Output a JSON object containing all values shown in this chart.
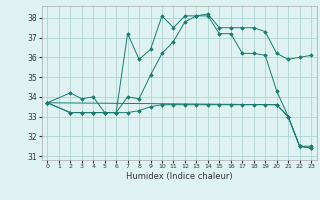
{
  "xlabel": "Humidex (Indice chaleur)",
  "bg_color": "#dff2f2",
  "grid_color": "#aed4d4",
  "line_color": "#1a7a6e",
  "xlim": [
    -0.5,
    23.5
  ],
  "ylim": [
    30.8,
    38.6
  ],
  "yticks": [
    31,
    32,
    33,
    34,
    35,
    36,
    37,
    38
  ],
  "xticks": [
    0,
    1,
    2,
    3,
    4,
    5,
    6,
    7,
    8,
    9,
    10,
    11,
    12,
    13,
    14,
    15,
    16,
    17,
    18,
    19,
    20,
    21,
    22,
    23
  ],
  "series": [
    {
      "x": [
        0,
        2,
        3,
        4,
        5,
        6,
        7,
        8,
        9,
        10,
        11,
        12,
        13,
        14,
        15,
        16,
        17,
        18,
        19,
        20,
        21,
        22,
        23
      ],
      "y": [
        33.7,
        34.2,
        33.9,
        34.0,
        33.2,
        33.2,
        37.2,
        35.9,
        36.4,
        38.1,
        37.5,
        38.1,
        38.1,
        38.1,
        37.2,
        37.2,
        36.2,
        36.2,
        36.1,
        34.3,
        33.0,
        31.5,
        31.5
      ]
    },
    {
      "x": [
        0,
        2,
        3,
        4,
        5,
        6,
        7,
        8,
        9,
        10,
        11,
        12,
        13,
        14,
        15,
        16,
        17,
        18,
        19,
        20,
        21,
        22,
        23
      ],
      "y": [
        33.7,
        33.2,
        33.2,
        33.2,
        33.2,
        33.2,
        34.0,
        33.9,
        35.1,
        36.2,
        36.8,
        37.8,
        38.1,
        38.2,
        37.5,
        37.5,
        37.5,
        37.5,
        37.3,
        36.2,
        35.9,
        36.0,
        36.1
      ]
    },
    {
      "x": [
        0,
        2,
        3,
        4,
        5,
        6,
        7,
        8,
        9,
        10,
        11,
        12,
        13,
        14,
        15,
        16,
        17,
        18,
        19,
        20,
        21,
        22,
        23
      ],
      "y": [
        33.7,
        33.2,
        33.2,
        33.2,
        33.2,
        33.2,
        33.2,
        33.3,
        33.5,
        33.6,
        33.6,
        33.6,
        33.6,
        33.6,
        33.6,
        33.6,
        33.6,
        33.6,
        33.6,
        33.6,
        33.0,
        31.5,
        31.4
      ]
    },
    {
      "x": [
        0,
        20,
        21,
        22,
        23
      ],
      "y": [
        33.7,
        33.6,
        33.0,
        31.5,
        31.4
      ]
    }
  ]
}
